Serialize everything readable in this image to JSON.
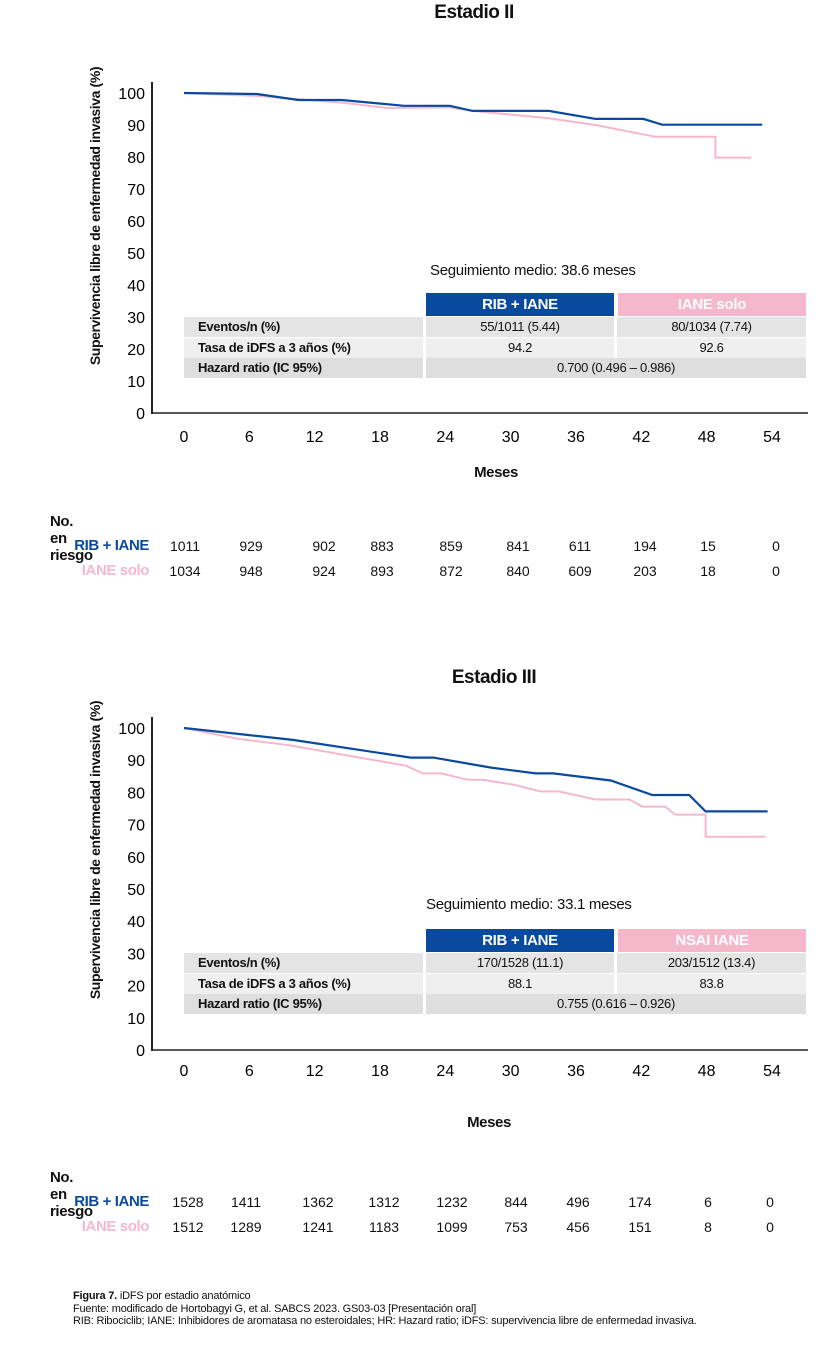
{
  "colors": {
    "rib": "#0a4a9e",
    "iane": "#f5b8cb",
    "row1": "#e4e4e4",
    "row2": "#efefef",
    "row3": "#dedede",
    "axis": "#222222"
  },
  "chart_data": [
    {
      "type": "line",
      "title": "Estadio II",
      "xlabel": "Meses",
      "ylabel": "Supervivencia libre de enfermedad invasiva (%)",
      "xlim": [
        0,
        54
      ],
      "ylim": [
        0,
        100
      ],
      "xticks": [
        "0",
        "6",
        "12",
        "18",
        "24",
        "30",
        "36",
        "42",
        "48",
        "54"
      ],
      "yticks": [
        "100",
        "90",
        "80",
        "70",
        "60",
        "50",
        "40",
        "30",
        "20",
        "10",
        "0"
      ],
      "grid": false,
      "series": [
        {
          "name": "RIB + IANE",
          "color": "#0a4a9e",
          "x": [
            0,
            6.7,
            10.5,
            14.5,
            20.2,
            24.4,
            26.5,
            33.5,
            37.8,
            42.2,
            43.9,
            53.1
          ],
          "y": [
            100,
            99.7,
            97.8,
            97.8,
            96,
            96,
            94.4,
            94.4,
            91.9,
            91.9,
            90.1,
            90.1
          ]
        },
        {
          "name": "IANE solo",
          "color": "#f5b8cb",
          "x": [
            0,
            6.7,
            14.5,
            18.7,
            24.4,
            26.5,
            33.5,
            37.8,
            43.3,
            48.8,
            48.8,
            52.1
          ],
          "y": [
            100,
            99.1,
            97,
            95.3,
            95.5,
            94.4,
            92.1,
            90,
            86.3,
            86.3,
            79.8,
            79.8
          ]
        }
      ],
      "follow_up": "Seguimiento medio: 38.6 meses",
      "table": {
        "headers": [
          "RIB + IANE",
          "IANE solo"
        ],
        "rows": [
          {
            "label": "Eventos/n (%)",
            "values": [
              "55/1011 (5.44)",
              "80/1034 (7.74)"
            ]
          },
          {
            "label": "Tasa de iDFS a 3 años (%)",
            "values": [
              "94.2",
              "92.6"
            ]
          },
          {
            "label": "Hazard ratio (IC 95%)",
            "values": [
              "0.700 (0.496 – 0.986)"
            ]
          }
        ]
      },
      "at_risk": {
        "title": "No. en riesgo",
        "groups": [
          {
            "name": "RIB + IANE",
            "values": [
              "1011",
              "929",
              "902",
              "883",
              "859",
              "841",
              "611",
              "194",
              "15",
              "0"
            ]
          },
          {
            "name": "IANE solo",
            "values": [
              "1034",
              "948",
              "924",
              "893",
              "872",
              "840",
              "609",
              "203",
              "18",
              "0"
            ]
          }
        ]
      }
    },
    {
      "type": "line",
      "title": "Estadio III",
      "xlabel": "Meses",
      "ylabel": "Supervivencia libre de enfermedad invasiva (%)",
      "xlim": [
        0,
        54
      ],
      "ylim": [
        0,
        100
      ],
      "xticks": [
        "0",
        "6",
        "12",
        "18",
        "24",
        "30",
        "36",
        "42",
        "48",
        "54"
      ],
      "yticks": [
        "100",
        "90",
        "80",
        "70",
        "60",
        "50",
        "40",
        "30",
        "20",
        "10",
        "0"
      ],
      "grid": false,
      "series": [
        {
          "name": "RIB + IANE",
          "color": "#0a4a9e",
          "x": [
            0,
            10,
            20.8,
            22.9,
            28.2,
            32.3,
            33.9,
            39.2,
            43,
            46.4,
            47.9,
            53.6
          ],
          "y": [
            100,
            96.3,
            90.8,
            90.8,
            87.7,
            85.9,
            85.9,
            83.7,
            79.2,
            79.2,
            74.1,
            74.1
          ]
        },
        {
          "name": "NSAI IANE",
          "color": "#f5b8cb",
          "x": [
            0,
            5,
            9.6,
            20.4,
            21.9,
            23.6,
            26.1,
            27.4,
            30.3,
            32.7,
            34.4,
            37.8,
            40.9,
            42.1,
            44.2,
            45.1,
            47.9,
            47.9,
            53.4
          ],
          "y": [
            100,
            96.6,
            94.7,
            88.3,
            85.9,
            85.9,
            83.9,
            83.9,
            82.4,
            80.3,
            80.3,
            77.8,
            77.8,
            75.6,
            75.6,
            73.1,
            73.1,
            66.2,
            66.2
          ]
        }
      ],
      "follow_up": "Seguimiento medio: 33.1 meses",
      "table": {
        "headers": [
          "RIB + IANE",
          "NSAI IANE"
        ],
        "rows": [
          {
            "label": "Eventos/n (%)",
            "values": [
              "170/1528 (11.1)",
              "203/1512 (13.4)"
            ]
          },
          {
            "label": "Tasa de iDFS a 3 años (%)",
            "values": [
              "88.1",
              "83.8"
            ]
          },
          {
            "label": "Hazard ratio (IC 95%)",
            "values": [
              "0.755 (0.616 – 0.926)"
            ]
          }
        ]
      },
      "at_risk": {
        "title": "No. en riesgo",
        "groups": [
          {
            "name": "RIB + IANE",
            "values": [
              "1528",
              "1411",
              "1362",
              "1312",
              "1232",
              "844",
              "496",
              "174",
              "6",
              "0"
            ]
          },
          {
            "name": "IANE solo",
            "values": [
              "1512",
              "1289",
              "1241",
              "1183",
              "1099",
              "753",
              "456",
              "151",
              "8",
              "0"
            ]
          }
        ]
      }
    }
  ],
  "caption": {
    "figure_label": "Figura 7.",
    "figure_title": " iDFS por estadio anatómico",
    "source": "Fuente: modificado de Hortobagyi G, et al. SABCS 2023. GS03-03 [Presentación oral]",
    "abbreviations": "RIB: Ribociclib; IANE: Inhibidores de aromatasa no esteroidales; HR: Hazard ratio; iDFS: supervivencia libre de enfermedad invasiva."
  }
}
